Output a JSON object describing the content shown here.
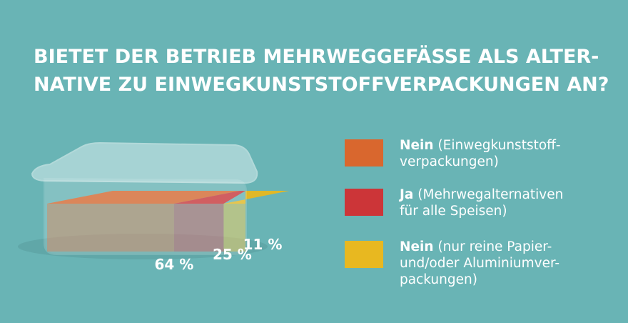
{
  "chart_data": {
    "type": "container-stack",
    "title_lines": [
      "BIETET DER BETRIEB MEHRWEGGEFÄSSE ALS ALTER-",
      "NATIVE ZU EINWEGKUNSTSTOFFVERPACKUNGEN AN?"
    ],
    "series": [
      {
        "name": "Nein",
        "description_lines": [
          "(Einwegkunststoff-",
          "verpackungen)"
        ],
        "color": "#d9672e",
        "values": [
          64
        ],
        "value_labels": [
          "64 %"
        ]
      },
      {
        "name": "Ja",
        "description_lines": [
          "(Mehrwegalternativen",
          "für alle Speisen)"
        ],
        "color": "#cc3538",
        "values": [
          25
        ],
        "value_labels": [
          "25 %"
        ]
      },
      {
        "name": "Nein",
        "description_lines": [
          "(nur reine Papier-",
          "und/oder Aluminiumver-",
          "packungen)"
        ],
        "color": "#e8b820",
        "values": [
          11
        ],
        "value_labels": [
          "11 %"
        ]
      }
    ]
  }
}
